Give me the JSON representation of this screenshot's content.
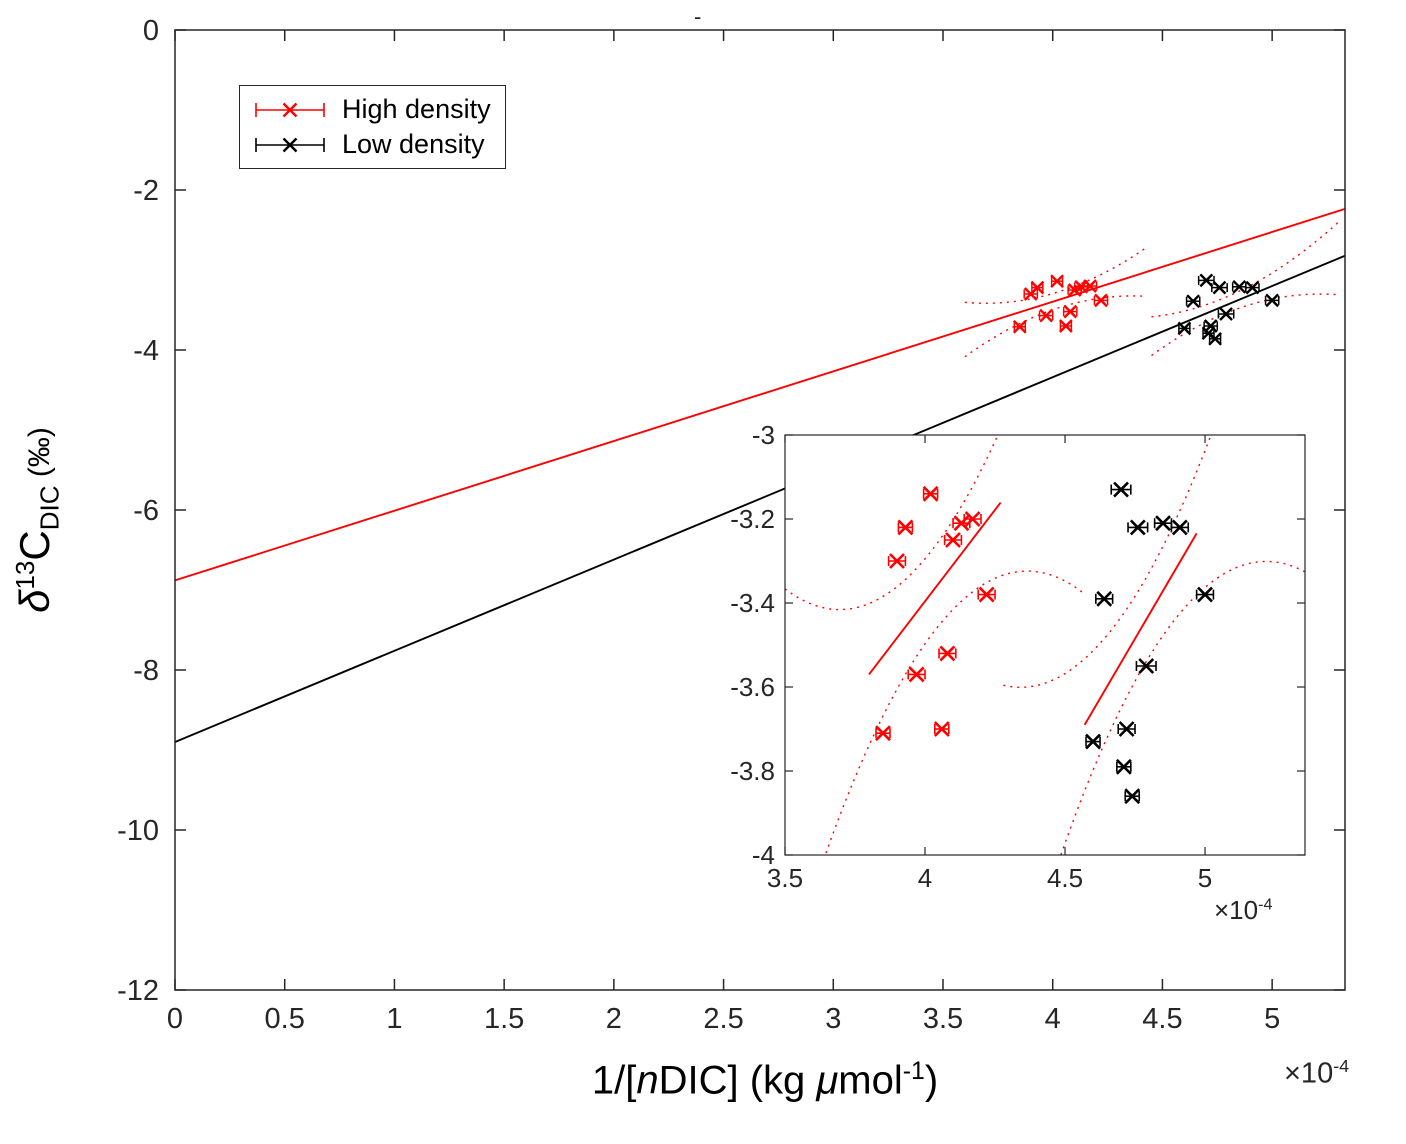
{
  "chart_data": {
    "type": "scatter",
    "title_mark": "-",
    "x_unit_scale": "1e-4",
    "xlabel": {
      "p1": "1/[",
      "n": "n",
      "p2": "DIC] (kg ",
      "mu": "μ",
      "p3": "mol",
      "sup": "-1",
      "p4": ")"
    },
    "ylabel": {
      "delta": "δ",
      "sup": "13",
      "c": "C",
      "sub": "DIC",
      "unit": " (‰)"
    },
    "exponent": {
      "base": "×10",
      "sup": "-4"
    },
    "colors": {
      "high": "#ff0000",
      "low": "#000000",
      "ci": "#ff0000",
      "axis": "#262626"
    },
    "legend": [
      {
        "label": "High density",
        "color": "#ff0000"
      },
      {
        "label": "Low density",
        "color": "#000000"
      }
    ],
    "main": {
      "xlim": [
        0,
        5.332
      ],
      "ylim": [
        -12,
        0
      ],
      "xticks": {
        "values": [
          0,
          0.5,
          1,
          1.5,
          2,
          2.5,
          3,
          3.5,
          4,
          4.5,
          5
        ],
        "labels": [
          "0",
          "0.5",
          "1",
          "1.5",
          "2",
          "2.5",
          "3",
          "3.5",
          "4",
          "4.5",
          "5"
        ]
      },
      "yticks": {
        "values": [
          0,
          -2,
          -4,
          -6,
          -8,
          -10,
          -12
        ],
        "labels": [
          "0",
          "-2",
          "-4",
          "-6",
          "-8",
          "-10",
          "-12"
        ]
      }
    },
    "inset": {
      "xlim": [
        3.5,
        5.357
      ],
      "ylim": [
        -4,
        -3
      ],
      "xticks": {
        "values": [
          3.5,
          4,
          4.5,
          5
        ],
        "labels": [
          "3.5",
          "4",
          "4.5",
          "5"
        ]
      },
      "yticks": {
        "values": [
          -3,
          -3.2,
          -3.4,
          -3.6,
          -3.8,
          -4
        ],
        "labels": [
          "-3",
          "-3.2",
          "-3.4",
          "-3.6",
          "-3.8",
          "-4"
        ]
      }
    },
    "series": [
      {
        "name": "High density",
        "color": "#ff0000",
        "points": [
          [
            3.85,
            -3.71,
            0.025
          ],
          [
            3.9,
            -3.3,
            0.03
          ],
          [
            3.93,
            -3.22,
            0.025
          ],
          [
            3.97,
            -3.57,
            0.03
          ],
          [
            4.02,
            -3.14,
            0.025
          ],
          [
            4.06,
            -3.7,
            0.025
          ],
          [
            4.08,
            -3.52,
            0.03
          ],
          [
            4.1,
            -3.25,
            0.03
          ],
          [
            4.13,
            -3.21,
            0.03
          ],
          [
            4.17,
            -3.2,
            0.03
          ],
          [
            4.22,
            -3.38,
            0.03
          ]
        ]
      },
      {
        "name": "Low density",
        "color": "#000000",
        "points": [
          [
            4.6,
            -3.73,
            0.025
          ],
          [
            4.64,
            -3.39,
            0.03
          ],
          [
            4.7,
            -3.13,
            0.035
          ],
          [
            4.71,
            -3.79,
            0.025
          ],
          [
            4.72,
            -3.7,
            0.03
          ],
          [
            4.74,
            -3.86,
            0.025
          ],
          [
            4.76,
            -3.22,
            0.035
          ],
          [
            4.79,
            -3.55,
            0.035
          ],
          [
            4.85,
            -3.21,
            0.03
          ],
          [
            4.91,
            -3.22,
            0.03
          ],
          [
            5.0,
            -3.38,
            0.03
          ]
        ]
      }
    ],
    "fits": [
      {
        "name": "high-density-fit",
        "color": "#ff0000",
        "inset_color": "#ff0000",
        "slope": 0.871,
        "intercept": -6.88,
        "main_range": [
          0,
          5.332
        ],
        "inset_range": [
          3.8,
          4.27
        ],
        "ci": {
          "center": 4.03,
          "b0": 0.1,
          "b2": 1.3,
          "main_range": [
            3.6,
            4.42
          ],
          "inset_range": [
            3.5,
            4.57
          ]
        }
      },
      {
        "name": "low-density-fit",
        "color": "#000000",
        "inset_color": "#ff0000",
        "slope": 1.14,
        "intercept": -8.9,
        "main_range": [
          0,
          5.332
        ],
        "inset_range": [
          4.57,
          4.97
        ],
        "ci": {
          "center": 4.78,
          "b0": 0.1,
          "b2": 1.3,
          "main_range": [
            4.45,
            5.3
          ],
          "inset_range": [
            4.28,
            5.357
          ]
        }
      }
    ]
  }
}
